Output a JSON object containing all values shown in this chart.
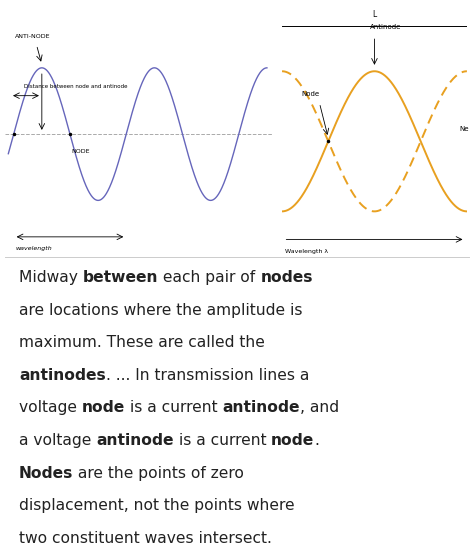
{
  "bg_color": "#ffffff",
  "panel_bg": "#ffffff",
  "wave_color_left": "#6666bb",
  "wave_color_right": "#e8a020",
  "text_color": "#222222",
  "left_labels": {
    "antinode": "ANTI-NODE",
    "node": "NODE",
    "wavelength": "wavelength",
    "distance_label": "Distance between node and antinode"
  },
  "right_labels": {
    "L": "L",
    "antinode": "Antinode",
    "node": "Node",
    "wavelength": "Wavelength λ",
    "N": "Nе"
  },
  "paragraph_lines": [
    [
      {
        "t": "Midway ",
        "b": false
      },
      {
        "t": "between",
        "b": true
      },
      {
        "t": " each pair of ",
        "b": false
      },
      {
        "t": "nodes",
        "b": true
      }
    ],
    [
      {
        "t": "are locations where the amplitude is",
        "b": false
      }
    ],
    [
      {
        "t": "maximum. These are called the",
        "b": false
      }
    ],
    [
      {
        "t": "antinodes",
        "b": true
      },
      {
        "t": ". ... In transmission lines a",
        "b": false
      }
    ],
    [
      {
        "t": "voltage ",
        "b": false
      },
      {
        "t": "node",
        "b": true
      },
      {
        "t": " is a current ",
        "b": false
      },
      {
        "t": "antinode",
        "b": true
      },
      {
        "t": ", and",
        "b": false
      }
    ],
    [
      {
        "t": "a voltage ",
        "b": false
      },
      {
        "t": "antinode",
        "b": true
      },
      {
        "t": " is a current ",
        "b": false
      },
      {
        "t": "node",
        "b": true
      },
      {
        "t": ".",
        "b": false
      }
    ],
    [
      {
        "t": "Nodes",
        "b": true
      },
      {
        "t": " are the points of zero",
        "b": false
      }
    ],
    [
      {
        "t": "displacement, not the points where",
        "b": false
      }
    ],
    [
      {
        "t": "two constituent waves intersect.",
        "b": false
      }
    ]
  ]
}
